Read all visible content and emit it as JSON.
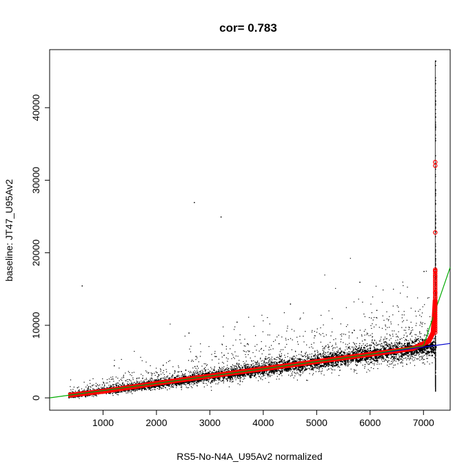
{
  "chart_data": {
    "type": "scatter",
    "title": "cor= 0.783",
    "xlabel": "RS5-No-N4A_U95Av2 normalized",
    "ylabel": "baseline: JT47_U95Av2",
    "xlim": [
      0,
      7500
    ],
    "ylim": [
      -1700,
      48000
    ],
    "x_ticks": [
      1000,
      2000,
      3000,
      4000,
      5000,
      6000,
      7000
    ],
    "y_ticks": [
      0,
      10000,
      20000,
      30000,
      40000
    ],
    "x_tick_labels": [
      "1000",
      "2000",
      "3000",
      "4000",
      "5000",
      "6000",
      "7000"
    ],
    "y_tick_labels": [
      "0",
      "10000",
      "20000",
      "30000",
      "40000"
    ],
    "grid": false,
    "colors": {
      "points": "#000000",
      "highlight": "#ff0000",
      "fit_line": "#0000cc",
      "smooth_line": "#00aa00"
    },
    "series": [
      {
        "type": "scatter",
        "color": "#000000",
        "description_points": [
          [
            350,
            300
          ],
          [
            500,
            500
          ],
          [
            800,
            800
          ],
          [
            1000,
            1000
          ],
          [
            1500,
            1600
          ],
          [
            2000,
            2200
          ],
          [
            2500,
            2800
          ],
          [
            3000,
            3300
          ],
          [
            3500,
            3800
          ],
          [
            4000,
            4300
          ],
          [
            4500,
            4800
          ],
          [
            5000,
            5200
          ],
          [
            5500,
            5700
          ],
          [
            6000,
            6100
          ],
          [
            6500,
            6600
          ],
          [
            7000,
            7200
          ],
          [
            1200,
            4500
          ],
          [
            2600,
            9000
          ],
          [
            3500,
            10500
          ],
          [
            4500,
            13000
          ],
          [
            5800,
            16000
          ],
          [
            7000,
            17500
          ],
          [
            3200,
            25000
          ],
          [
            2700,
            27000
          ],
          [
            600,
            15500
          ],
          [
            7220,
            46500
          ]
        ]
      },
      {
        "type": "line",
        "color": "#ff0000",
        "x": [
          350,
          1000,
          2000,
          3000,
          4000,
          5000,
          6000,
          6800,
          7100,
          7180,
          7200,
          7220
        ],
        "y": [
          350,
          900,
          2000,
          3000,
          4000,
          5000,
          6000,
          6800,
          7800,
          9000,
          11000,
          13500
        ]
      },
      {
        "type": "markers",
        "color": "#ff0000",
        "x": [
          7220,
          7220,
          7220,
          7220,
          7220,
          7220,
          7220,
          7220
        ],
        "y": [
          32500,
          32000,
          22800,
          17500,
          16800,
          14500,
          13800,
          13000
        ]
      },
      {
        "type": "line",
        "color": "#0000cc",
        "x": [
          350,
          7500
        ],
        "y": [
          350,
          7500
        ]
      },
      {
        "type": "line",
        "color": "#00aa00",
        "x": [
          0,
          350,
          2000,
          4000,
          6000,
          7000,
          7220,
          7500
        ],
        "y": [
          0,
          350,
          2000,
          4000,
          6000,
          7200,
          12000,
          18000
        ]
      }
    ]
  }
}
